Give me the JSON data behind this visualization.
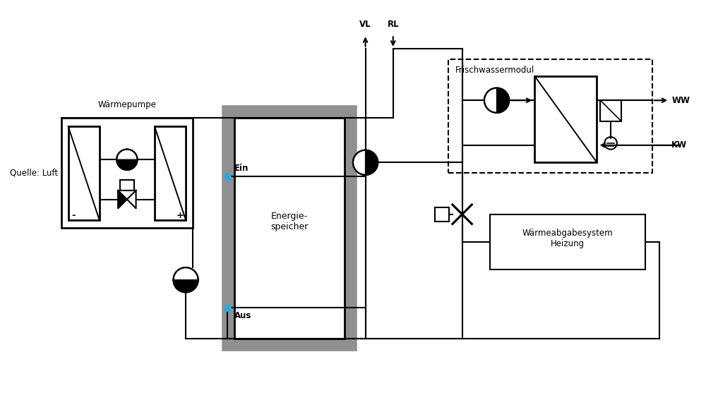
{
  "bg_color": "#ffffff",
  "line_color": "#000000",
  "dot_color": "#29ABE2",
  "labels": {
    "VL": "VL",
    "RL": "RL",
    "WW": "WW",
    "KW": "KW",
    "Ein": "Ein",
    "Aus": "Aus",
    "waermepumpe": "Wärmepumpe",
    "quelle": "Quelle: Luft",
    "energie_line1": "Energie-",
    "energie_line2": "speicher",
    "frischwasser": "Frischwassermodul",
    "waermeabgabe_line1": "Wärmeabgabesystem",
    "waermeabgabe_line2": "Heizung"
  },
  "fontsize": 9
}
